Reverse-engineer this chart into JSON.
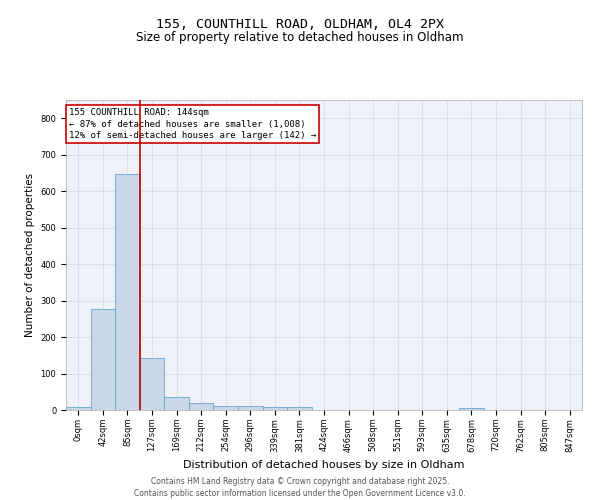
{
  "title_line1": "155, COUNTHILL ROAD, OLDHAM, OL4 2PX",
  "title_line2": "Size of property relative to detached houses in Oldham",
  "xlabel": "Distribution of detached houses by size in Oldham",
  "ylabel": "Number of detached properties",
  "footer_line1": "Contains HM Land Registry data © Crown copyright and database right 2025.",
  "footer_line2": "Contains public sector information licensed under the Open Government Licence v3.0.",
  "annotation_line1": "155 COUNTHILL ROAD: 144sqm",
  "annotation_line2": "← 87% of detached houses are smaller (1,008)",
  "annotation_line3": "12% of semi-detached houses are larger (142) →",
  "bin_labels": [
    "0sqm",
    "42sqm",
    "85sqm",
    "127sqm",
    "169sqm",
    "212sqm",
    "254sqm",
    "296sqm",
    "339sqm",
    "381sqm",
    "424sqm",
    "466sqm",
    "508sqm",
    "551sqm",
    "593sqm",
    "635sqm",
    "678sqm",
    "720sqm",
    "762sqm",
    "805sqm",
    "847sqm"
  ],
  "bar_values": [
    8,
    278,
    648,
    143,
    35,
    18,
    11,
    10,
    9,
    7,
    0,
    0,
    0,
    0,
    0,
    0,
    5,
    0,
    0,
    0,
    0
  ],
  "bar_color": "#c8d8e8",
  "bar_edge_color": "#5599cc",
  "vline_color": "#cc0000",
  "vline_x": 2.5,
  "ylim": [
    0,
    850
  ],
  "yticks": [
    0,
    100,
    200,
    300,
    400,
    500,
    600,
    700,
    800
  ],
  "grid_color": "#d0d8e8",
  "bg_color": "#eef2f8",
  "annotation_box_color": "#cc0000",
  "title1_fontsize": 9.5,
  "title2_fontsize": 8.5,
  "ylabel_fontsize": 7.5,
  "xlabel_fontsize": 8,
  "tick_fontsize": 6,
  "ann_fontsize": 6.5,
  "footer_fontsize": 5.5
}
